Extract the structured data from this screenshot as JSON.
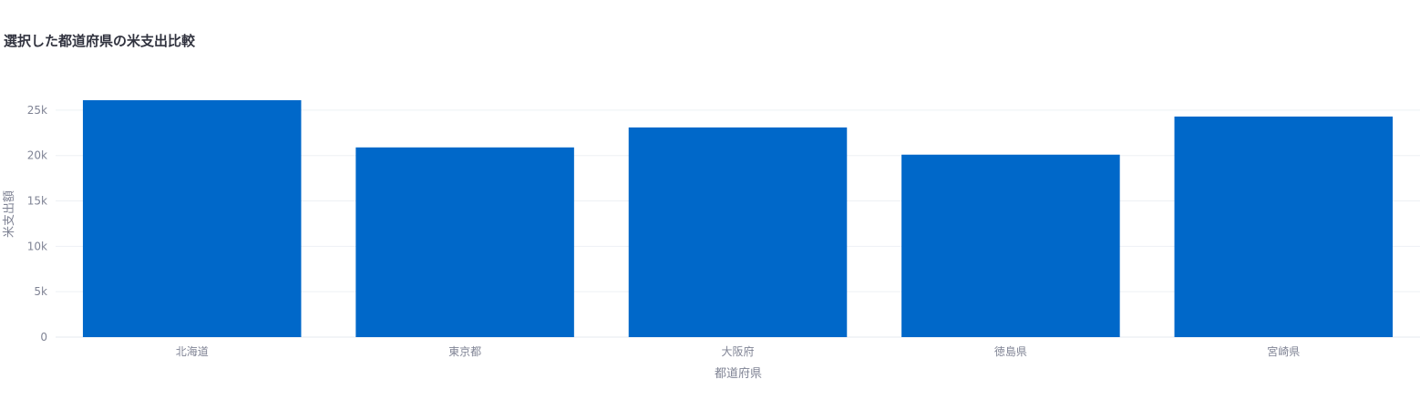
{
  "chart_data": {
    "type": "bar",
    "title": "選択した都道府県の米支出比較",
    "xlabel": "都道府県",
    "ylabel": "米支出額",
    "categories": [
      "北海道",
      "東京都",
      "大阪府",
      "徳島県",
      "宮崎県"
    ],
    "values": [
      26100,
      20900,
      23100,
      20100,
      24300
    ],
    "ylim": [
      0,
      26800
    ],
    "yticks": [
      0,
      5000,
      10000,
      15000,
      20000,
      25000
    ],
    "ytick_labels": [
      "0",
      "5k",
      "10k",
      "15k",
      "20k",
      "25k"
    ],
    "grid": true,
    "legend": "none",
    "bar_color": "#0068c9"
  }
}
